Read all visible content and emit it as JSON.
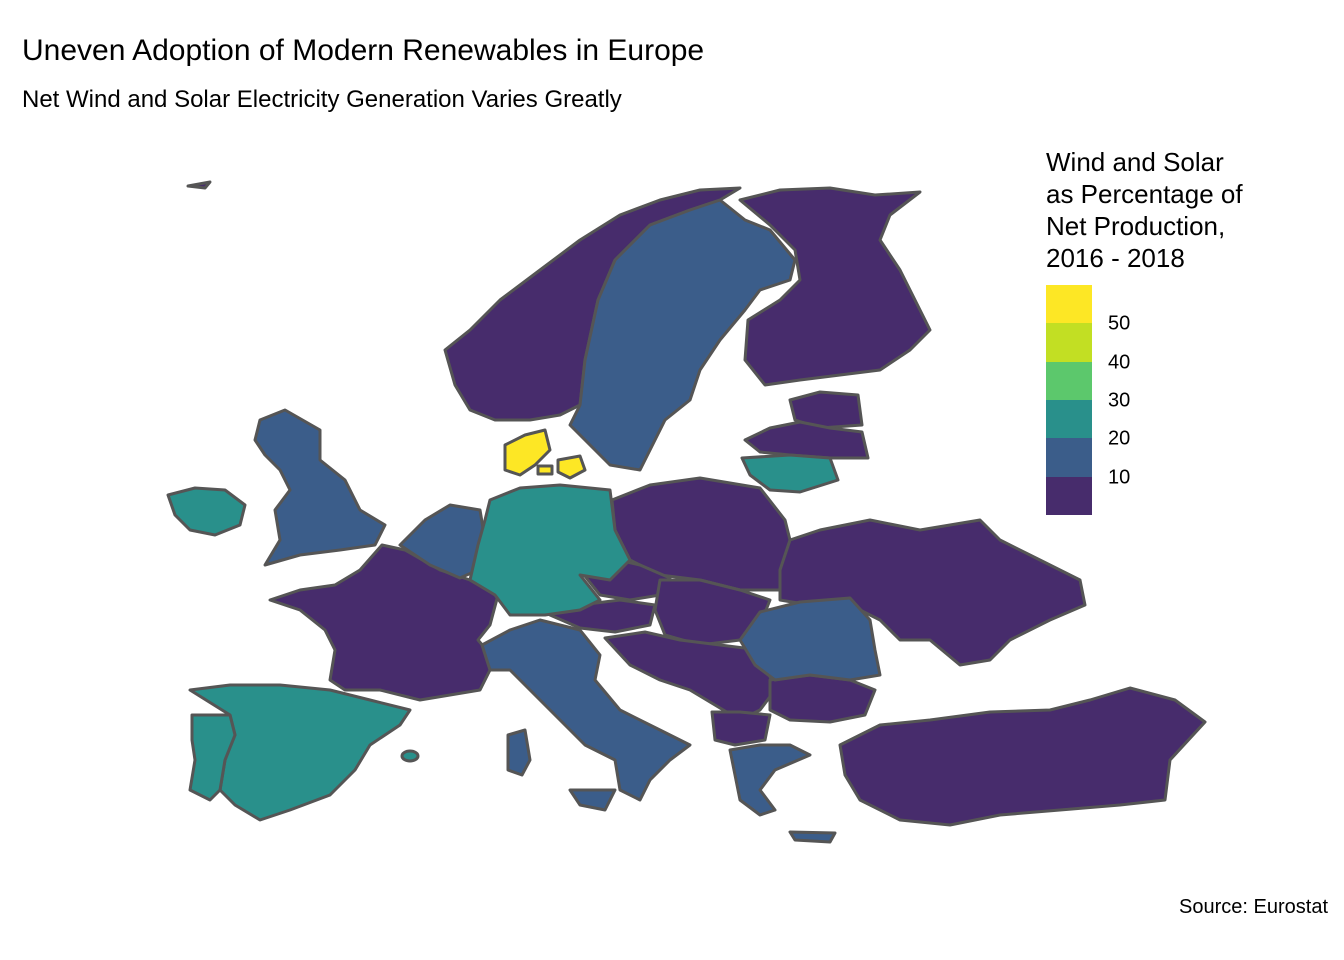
{
  "title": "Uneven Adoption of Modern Renewables in Europe",
  "subtitle": "Net Wind and Solar Electricity Generation Varies Greatly",
  "caption": "Source: Eurostat",
  "legend": {
    "title_lines": [
      "Wind and Solar",
      "as Percentage of",
      "Net Production,",
      "2016 - 2018"
    ],
    "ticks": [
      "50",
      "40",
      "30",
      "20",
      "10"
    ],
    "bins": [
      {
        "from": 50,
        "color": "#FDE725"
      },
      {
        "from": 40,
        "color": "#C2DF23"
      },
      {
        "from": 30,
        "color": "#5CC86C"
      },
      {
        "from": 20,
        "color": "#29908B"
      },
      {
        "from": 10,
        "color": "#3B5D8A"
      },
      {
        "from": 0,
        "color": "#472C6C"
      }
    ]
  },
  "map_data": {
    "range_min": 0,
    "range_max": 60,
    "colors": {
      "bin_0_10": "#472C6C",
      "bin_10_20": "#3B5D8A",
      "bin_20_30": "#29908B",
      "bin_50_60": "#FDE725",
      "border": "#555555",
      "background": "#ffffff"
    }
  }
}
